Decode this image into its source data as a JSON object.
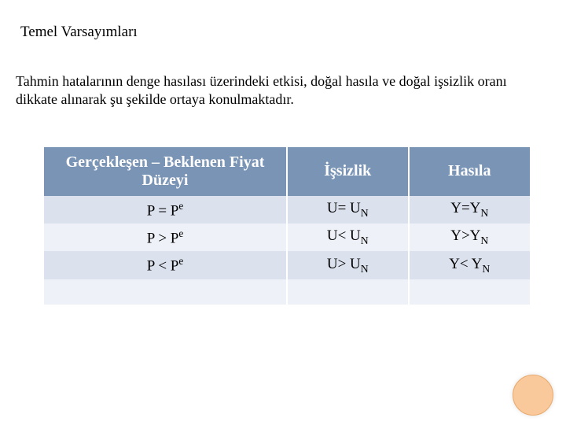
{
  "title": "Temel Varsayımları",
  "description": "Tahmin hatalarının denge hasılası üzerindeki etkisi, doğal hasıla ve doğal işsizlik oranı dikkate alınarak şu şekilde  ortaya konulmaktadır.",
  "table": {
    "headers": {
      "col1_line1": "Gerçekleşen – Beklenen Fiyat",
      "col1_line2": "Düzeyi",
      "col2": "İşsizlik",
      "col3": "Hasıla"
    },
    "rows": [
      {
        "c1_a": "P = P",
        "c1_sup": "e",
        "c2_a": "U= U",
        "c2_sub": "N",
        "c3_a": "Y=Y",
        "c3_sub": "N"
      },
      {
        "c1_a": "P > P",
        "c1_sup": "e",
        "c2_a": "U< U",
        "c2_sub": "N",
        "c3_a": "Y>Y",
        "c3_sub": "N"
      },
      {
        "c1_a": "P < P",
        "c1_sup": "e",
        "c2_a": "U> U",
        "c2_sub": "N",
        "c3_a": "Y< Y",
        "c3_sub": "N"
      }
    ]
  },
  "style": {
    "header_bg": "#7a94b5",
    "header_fg": "#ffffff",
    "row_odd_bg": "#dbe2ee",
    "row_even_bg": "#eef1f7",
    "circle_fill": "#f9c99c",
    "circle_border": "#e9a96a",
    "page_bg": "#ffffff",
    "text_color": "#000000",
    "title_fontsize": 19,
    "desc_fontsize": 18,
    "cell_fontsize": 19,
    "header_fontsize": 20
  }
}
